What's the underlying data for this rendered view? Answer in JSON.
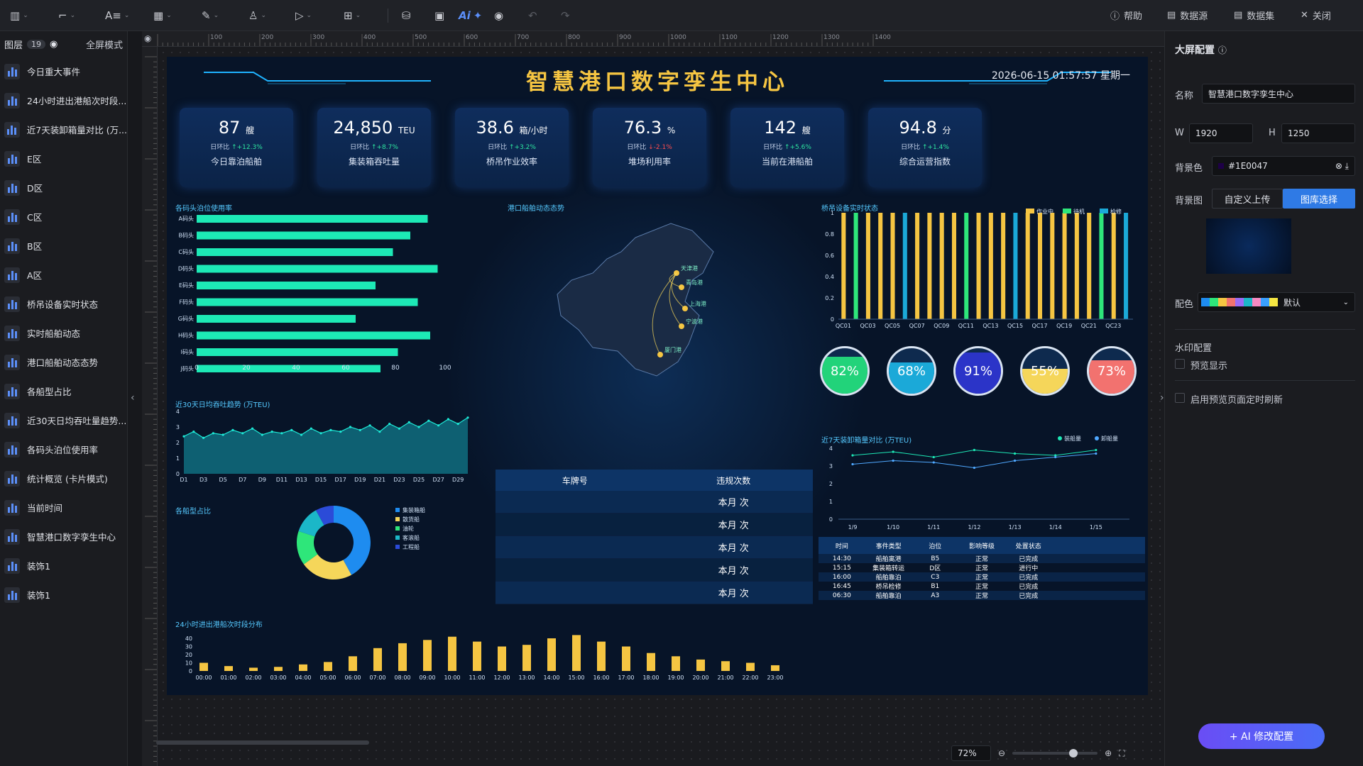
{
  "toolbar": {
    "help": "帮助",
    "datasource": "数据源",
    "dataset": "数据集",
    "close": "关闭",
    "ai": "Ai"
  },
  "layers": {
    "title": "图层",
    "count": "19",
    "fullscreen": "全屏模式",
    "items": [
      "今日重大事件",
      "24小时进出港船次时段...",
      "近7天装卸箱量对比 (万...",
      "E区",
      "D区",
      "C区",
      "B区",
      "A区",
      "桥吊设备实时状态",
      "实时船舶动态",
      "港口船舶动态态势",
      "各船型占比",
      "近30天日均吞吐量趋势...",
      "各码头泊位使用率",
      "统计概览 (卡片模式)",
      "当前时间",
      "智慧港口数字孪生中心",
      "装饰1",
      "装饰1"
    ]
  },
  "screen": {
    "title": "智慧港口数字孪生中心",
    "date": "2026-06-15 01:57:57  星期一",
    "kpis": [
      {
        "value": "87",
        "unit": "艘",
        "change": "日环比",
        "delta": "↑+12.3%",
        "dir": "up",
        "label": "今日靠泊船舶"
      },
      {
        "value": "24,850",
        "unit": "TEU",
        "change": "日环比",
        "delta": "↑+8.7%",
        "dir": "up",
        "label": "集装箱吞吐量"
      },
      {
        "value": "38.6",
        "unit": "箱/小时",
        "change": "日环比",
        "delta": "↑+3.2%",
        "dir": "up",
        "label": "桥吊作业效率"
      },
      {
        "value": "76.3",
        "unit": "%",
        "change": "日环比",
        "delta": "↓-2.1%",
        "dir": "dn",
        "label": "堆场利用率"
      },
      {
        "value": "142",
        "unit": "艘",
        "change": "日环比",
        "delta": "↑+5.6%",
        "dir": "up",
        "label": "当前在港船舶"
      },
      {
        "value": "94.8",
        "unit": "分",
        "change": "日环比",
        "delta": "↑+1.4%",
        "dir": "up",
        "label": "综合运营指数"
      }
    ],
    "panels": {
      "berth": "各码头泊位使用率",
      "map": "港口船舶动态态势",
      "crane": "桥吊设备实时状态",
      "trend": "近30天日均吞吐趋势 (万TEU)",
      "ship": "各船型占比",
      "hourly": "24小时进出港船次时段分布",
      "week": "近7天装卸箱量对比 (万TEU)"
    },
    "table": {
      "headers": [
        "车牌号",
        "违规次数"
      ],
      "rows": [
        "本月 次",
        "本月 次",
        "本月 次",
        "本月 次",
        "本月 次"
      ]
    },
    "events": {
      "headers": [
        "时间",
        "事件类型",
        "泊位",
        "影响等级",
        "处置状态"
      ],
      "rows": [
        [
          "14:30",
          "船舶离港",
          "B5",
          "正常",
          "已完成"
        ],
        [
          "15:15",
          "集装箱转运",
          "D区",
          "正常",
          "进行中"
        ],
        [
          "16:00",
          "船舶靠泊",
          "C3",
          "正常",
          "已完成"
        ],
        [
          "16:45",
          "桥吊检修",
          "B1",
          "正常",
          "已完成"
        ],
        [
          "06:30",
          "船舶靠泊",
          "A3",
          "正常",
          "已完成"
        ]
      ]
    },
    "gauges": [
      {
        "label": "82%",
        "value": 0.82,
        "color": "#22d37a"
      },
      {
        "label": "68%",
        "value": 0.68,
        "color": "#1ba9d8"
      },
      {
        "label": "91%",
        "value": 0.91,
        "color": "#2b34c8"
      },
      {
        "label": "55%",
        "value": 0.55,
        "color": "#f5d65a"
      },
      {
        "label": "73%",
        "value": 0.73,
        "color": "#f2726f"
      }
    ],
    "map_labels": [
      "天津港",
      "青岛港",
      "上海港",
      "宁波港",
      "厦门港"
    ]
  },
  "chart_data": [
    {
      "type": "bar",
      "id": "berth",
      "categories": [
        "A码头",
        "B码头",
        "C码头",
        "D码头",
        "E码头",
        "F码头",
        "G码头",
        "H码头",
        "I码头",
        "J码头"
      ],
      "values": [
        93,
        86,
        79,
        97,
        72,
        89,
        64,
        94,
        81,
        74
      ],
      "xlim": [
        0,
        100
      ],
      "xticks": [
        "0",
        "20",
        "40",
        "60",
        "80",
        "100"
      ],
      "color": "#1de9b6"
    },
    {
      "type": "bar",
      "id": "crane",
      "categories": [
        "QC01",
        "QC02",
        "QC03",
        "QC04",
        "QC05",
        "QC06",
        "QC07",
        "QC08",
        "QC09",
        "QC10",
        "QC11",
        "QC12",
        "QC13",
        "QC14",
        "QC15",
        "QC16",
        "QC17",
        "QC18",
        "QC19",
        "QC20",
        "QC21",
        "QC22",
        "QC23",
        "QC24"
      ],
      "values": [
        1,
        1,
        1,
        1,
        1,
        1,
        1,
        1,
        1,
        1,
        1,
        1,
        1,
        1,
        1,
        1,
        1,
        1,
        1,
        1,
        1,
        1,
        1,
        1
      ],
      "status": [
        "作业中",
        "待机",
        "作业中",
        "作业中",
        "作业中",
        "检修",
        "作业中",
        "作业中",
        "作业中",
        "作业中",
        "待机",
        "作业中",
        "作业中",
        "作业中",
        "检修",
        "作业中",
        "作业中",
        "作业中",
        "作业中",
        "作业中",
        "作业中",
        "待机",
        "作业中",
        "检修"
      ],
      "legend": [
        "作业中",
        "待机",
        "检修"
      ],
      "colors": [
        "#f5c542",
        "#2ee67a",
        "#1ba9d8"
      ],
      "ylim": [
        0,
        1
      ],
      "yticks": [
        "0",
        "0.2",
        "0.4",
        "0.6",
        "0.8",
        "1"
      ],
      "xticks": [
        "QC01",
        "QC03",
        "QC05",
        "QC07",
        "QC09",
        "QC11",
        "QC13",
        "QC15",
        "QC17",
        "QC19",
        "QC21",
        "QC23"
      ]
    },
    {
      "type": "area",
      "id": "trend",
      "x": [
        "D1",
        "D2",
        "D3",
        "D4",
        "D5",
        "D6",
        "D7",
        "D8",
        "D9",
        "D10",
        "D11",
        "D12",
        "D13",
        "D14",
        "D15",
        "D16",
        "D17",
        "D18",
        "D19",
        "D20",
        "D21",
        "D22",
        "D23",
        "D24",
        "D25",
        "D26",
        "D27",
        "D28",
        "D29",
        "D30"
      ],
      "values": [
        2.4,
        2.7,
        2.3,
        2.6,
        2.5,
        2.8,
        2.6,
        2.9,
        2.5,
        2.7,
        2.6,
        2.8,
        2.5,
        2.9,
        2.6,
        2.8,
        2.7,
        3.0,
        2.8,
        3.1,
        2.7,
        3.2,
        2.9,
        3.3,
        3.0,
        3.4,
        3.1,
        3.5,
        3.2,
        3.6
      ],
      "ylim": [
        0,
        4
      ],
      "yticks": [
        "0",
        "1",
        "2",
        "3",
        "4"
      ],
      "xticks": [
        "D1",
        "D3",
        "D5",
        "D7",
        "D9",
        "D11",
        "D13",
        "D15",
        "D17",
        "D19",
        "D21",
        "D23",
        "D25",
        "D27",
        "D29"
      ]
    },
    {
      "type": "pie",
      "id": "ship",
      "labels": [
        "集装箱船",
        "散货船",
        "油轮",
        "客滚船",
        "工程船"
      ],
      "values": [
        42,
        23,
        15,
        12,
        8
      ],
      "colors": [
        "#1e8cf0",
        "#f5d65a",
        "#2ee67a",
        "#1bb7c8",
        "#2b4bd8"
      ]
    },
    {
      "type": "bar",
      "id": "hourly",
      "categories": [
        "00:00",
        "01:00",
        "02:00",
        "03:00",
        "04:00",
        "05:00",
        "06:00",
        "07:00",
        "08:00",
        "09:00",
        "10:00",
        "11:00",
        "12:00",
        "13:00",
        "14:00",
        "15:00",
        "16:00",
        "17:00",
        "18:00",
        "19:00",
        "20:00",
        "21:00",
        "22:00",
        "23:00"
      ],
      "values": [
        10,
        6,
        4,
        5,
        8,
        11,
        18,
        28,
        34,
        38,
        42,
        36,
        30,
        32,
        40,
        44,
        36,
        30,
        22,
        18,
        14,
        12,
        10,
        7
      ],
      "ylim": [
        0,
        40
      ],
      "yticks": [
        "0",
        "10",
        "20",
        "30",
        "40"
      ]
    },
    {
      "type": "line",
      "id": "week",
      "x": [
        "1/9",
        "1/10",
        "1/11",
        "1/12",
        "1/13",
        "1/14",
        "1/15"
      ],
      "series": [
        {
          "name": "装船量",
          "values": [
            3.6,
            3.8,
            3.5,
            3.9,
            3.7,
            3.6,
            3.9
          ],
          "color": "#1de9b6"
        },
        {
          "name": "卸船量",
          "values": [
            3.1,
            3.3,
            3.2,
            2.9,
            3.3,
            3.5,
            3.7
          ],
          "color": "#4fa8ff"
        }
      ],
      "ylim": [
        0,
        4
      ],
      "yticks": [
        "0",
        "1",
        "2",
        "3",
        "4"
      ]
    }
  ],
  "props": {
    "title": "大屏配置",
    "name_label": "名称",
    "name_value": "智慧港口数字孪生中心",
    "w_label": "W",
    "w_value": "1920",
    "h_label": "H",
    "h_value": "1250",
    "bg_label": "背景色",
    "bg_value": "#1E0047",
    "bgimg_label": "背景图",
    "upload": "自定义上传",
    "gallery": "图库选择",
    "palette_label": "配色",
    "palette_value": "默认",
    "watermark": "水印配置",
    "preview": "预览显示",
    "refresh": "启用预览页面定时刷新",
    "ai_btn": "+ AI 修改配置",
    "zoom": "72%"
  }
}
